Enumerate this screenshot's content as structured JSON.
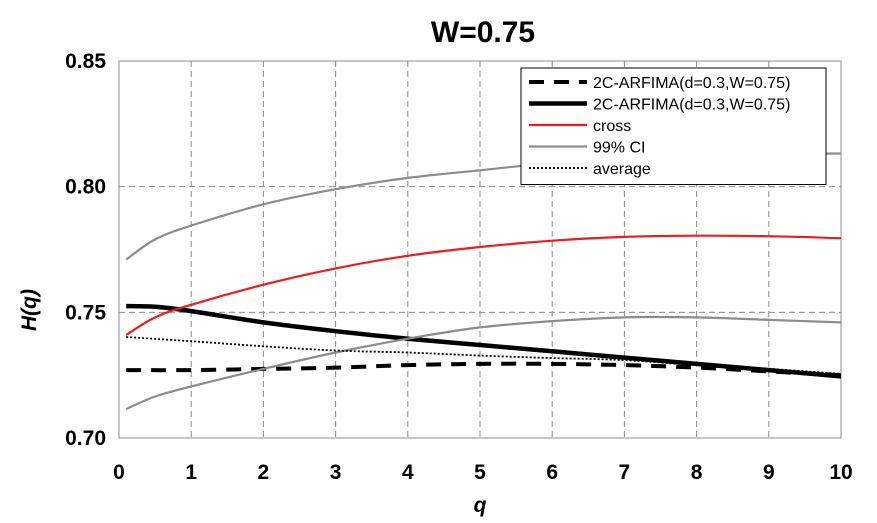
{
  "chart_data": {
    "type": "line",
    "title": "W=0.75",
    "xlabel": "q",
    "ylabel": "H(q)",
    "xlim": [
      0,
      10
    ],
    "ylim": [
      0.7,
      0.85
    ],
    "xticks": [
      0,
      1,
      2,
      3,
      4,
      5,
      6,
      7,
      8,
      9,
      10
    ],
    "yticks": [
      0.7,
      0.75,
      0.8,
      0.85
    ],
    "ytick_labels": [
      "0.70",
      "0.75",
      "0.80",
      "0.85"
    ],
    "grid": true,
    "legend_position": "top-right",
    "series": [
      {
        "name": "2C-ARFIMA(d=0.3,W=0.75)",
        "style": "dashed",
        "color": "#000000",
        "x": [
          0.1,
          1,
          2,
          3,
          4,
          5,
          6,
          7,
          8,
          9,
          10
        ],
        "y": [
          0.727,
          0.727,
          0.7275,
          0.728,
          0.729,
          0.7295,
          0.7295,
          0.729,
          0.728,
          0.7265,
          0.725
        ]
      },
      {
        "name": "2C-ARFIMA(d=0.3,W=0.75)",
        "style": "solid-thick",
        "color": "#000000",
        "x": [
          0.1,
          0.5,
          1,
          2,
          3,
          4,
          5,
          6,
          7,
          8,
          9,
          10
        ],
        "y": [
          0.7525,
          0.7522,
          0.7505,
          0.746,
          0.7425,
          0.7395,
          0.737,
          0.7345,
          0.732,
          0.7295,
          0.727,
          0.7245
        ]
      },
      {
        "name": "cross",
        "style": "solid",
        "color": "#ee1c1c",
        "x": [
          0.1,
          0.5,
          1,
          2,
          3,
          4,
          5,
          6,
          7,
          8,
          9,
          10
        ],
        "y": [
          0.741,
          0.748,
          0.753,
          0.761,
          0.7675,
          0.7725,
          0.776,
          0.7785,
          0.78,
          0.7805,
          0.7803,
          0.7795
        ]
      },
      {
        "name": "99% CI",
        "style": "solid",
        "color": "#8c8c8c",
        "x": [
          0.1,
          0.5,
          1,
          2,
          3,
          4,
          5,
          6,
          7,
          8,
          9,
          10
        ],
        "y": [
          0.771,
          0.779,
          0.7845,
          0.793,
          0.799,
          0.8035,
          0.8065,
          0.8095,
          0.8115,
          0.8125,
          0.813,
          0.8132
        ]
      },
      {
        "name": "",
        "style": "solid",
        "color": "#8c8c8c",
        "x": [
          0.1,
          0.5,
          1,
          2,
          3,
          4,
          5,
          6,
          7,
          8,
          9,
          10
        ],
        "y": [
          0.7115,
          0.7165,
          0.7205,
          0.7275,
          0.734,
          0.7395,
          0.744,
          0.7465,
          0.748,
          0.748,
          0.747,
          0.746
        ]
      },
      {
        "name": "average",
        "style": "dotted",
        "color": "#000000",
        "x": [
          0.1,
          1,
          2,
          3,
          4,
          5,
          6,
          7,
          8,
          9,
          10
        ],
        "y": [
          0.7402,
          0.7385,
          0.7365,
          0.7348,
          0.734,
          0.7328,
          0.7318,
          0.731,
          0.729,
          0.7275,
          0.7255
        ]
      }
    ],
    "legend": [
      {
        "label": "2C-ARFIMA(d=0.3,W=0.75)",
        "style": "dashed",
        "color": "#000000"
      },
      {
        "label": "2C-ARFIMA(d=0.3,W=0.75)",
        "style": "solid-thick",
        "color": "#000000"
      },
      {
        "label": "cross",
        "style": "solid",
        "color": "#ee1c1c"
      },
      {
        "label": "99% CI",
        "style": "solid",
        "color": "#8c8c8c"
      },
      {
        "label": "average",
        "style": "dotted",
        "color": "#000000"
      }
    ]
  }
}
